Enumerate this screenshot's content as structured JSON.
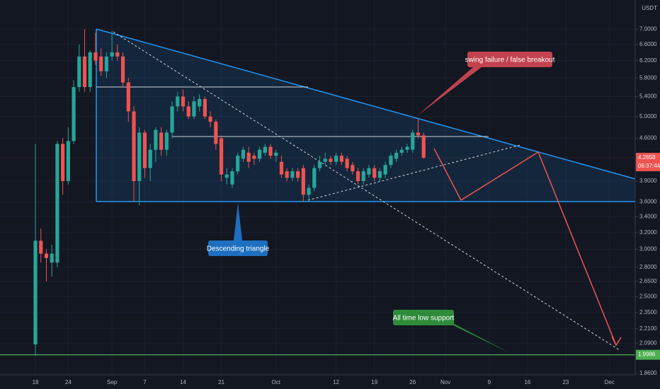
{
  "chart_data": {
    "type": "candlestick",
    "log_scale": true,
    "grid": true,
    "up_color": "#26a69a",
    "down_color": "#ef5350",
    "currency": "USDT",
    "x": [
      0,
      1,
      2,
      3,
      4,
      5,
      6,
      7,
      8,
      9,
      10,
      11,
      12,
      13,
      14,
      15,
      16,
      17,
      18,
      19,
      20,
      21,
      22,
      23,
      24,
      25,
      26,
      27,
      28,
      29,
      30,
      31,
      32,
      33,
      34,
      35,
      36,
      37,
      38,
      39,
      40,
      41,
      42,
      43,
      44,
      45,
      46,
      47,
      48,
      49,
      50,
      51,
      52,
      53,
      54,
      55,
      56,
      57,
      58,
      59,
      60,
      61,
      62,
      63,
      64,
      65,
      66,
      67,
      68,
      69,
      70,
      71
    ],
    "open": [
      2.08,
      3.1,
      2.95,
      2.85,
      2.85,
      4.5,
      3.9,
      4.55,
      5.6,
      6.3,
      5.6,
      6.4,
      6.3,
      5.95,
      6.3,
      6.4,
      6.3,
      5.7,
      5.1,
      3.9,
      4.7,
      4.1,
      4.4,
      4.7,
      4.4,
      4.7,
      5.2,
      5.4,
      5.2,
      5.0,
      5.2,
      5.35,
      5.0,
      4.9,
      4.6,
      3.95,
      3.85,
      4.05,
      4.25,
      4.35,
      4.3,
      4.25,
      4.35,
      4.45,
      4.3,
      4.2,
      4.05,
      3.95,
      4.05,
      4.1,
      3.7,
      3.8,
      4.1,
      4.2,
      4.25,
      4.2,
      4.3,
      4.25,
      4.15,
      4.05,
      3.9,
      4.0,
      4.1,
      3.95,
      4.0,
      4.15,
      4.25,
      4.35,
      4.4,
      4.4,
      4.7,
      4.65
    ],
    "high": [
      4.5,
      3.25,
      3.0,
      3.05,
      4.55,
      4.6,
      4.8,
      5.75,
      6.6,
      7.0,
      6.45,
      6.9,
      6.5,
      6.4,
      6.95,
      6.6,
      6.4,
      5.8,
      5.2,
      4.8,
      4.75,
      4.5,
      4.8,
      4.8,
      4.75,
      5.3,
      5.5,
      5.55,
      5.3,
      5.4,
      5.45,
      5.4,
      5.1,
      4.95,
      4.65,
      4.1,
      4.1,
      4.35,
      4.45,
      4.45,
      4.35,
      4.45,
      4.5,
      4.5,
      4.4,
      4.3,
      4.1,
      4.1,
      4.1,
      4.15,
      3.85,
      4.15,
      4.3,
      4.35,
      4.3,
      4.35,
      4.35,
      4.3,
      4.2,
      4.1,
      4.1,
      4.15,
      4.15,
      4.1,
      4.2,
      4.35,
      4.4,
      4.45,
      4.5,
      4.75,
      4.95,
      4.7
    ],
    "low": [
      1.99,
      2.85,
      2.65,
      2.7,
      2.8,
      3.7,
      3.85,
      4.5,
      5.5,
      5.5,
      5.5,
      6.1,
      5.85,
      5.8,
      6.2,
      6.2,
      5.6,
      4.9,
      3.6,
      3.55,
      3.95,
      3.9,
      4.2,
      4.3,
      4.3,
      4.6,
      5.1,
      5.1,
      4.95,
      4.95,
      5.1,
      4.95,
      4.8,
      4.4,
      3.9,
      3.85,
      3.8,
      4.0,
      4.2,
      4.1,
      4.15,
      4.2,
      4.3,
      4.25,
      4.2,
      3.95,
      3.9,
      3.9,
      3.9,
      3.6,
      3.6,
      3.75,
      4.05,
      4.15,
      4.15,
      4.15,
      4.15,
      4.05,
      4.0,
      3.85,
      3.85,
      3.95,
      3.9,
      3.9,
      3.95,
      4.1,
      4.2,
      4.3,
      4.35,
      4.35,
      4.6,
      4.25
    ],
    "close": [
      3.1,
      2.95,
      2.9,
      2.95,
      4.5,
      3.9,
      4.55,
      5.6,
      6.3,
      5.6,
      6.4,
      6.2,
      5.95,
      6.3,
      6.4,
      6.3,
      5.7,
      5.1,
      3.9,
      4.7,
      4.1,
      4.4,
      4.75,
      4.4,
      4.7,
      5.2,
      5.4,
      5.2,
      5.0,
      5.3,
      5.35,
      5.0,
      4.9,
      4.5,
      4.0,
      4.0,
      4.05,
      4.3,
      4.4,
      4.2,
      4.25,
      4.4,
      4.45,
      4.3,
      4.35,
      4.0,
      3.95,
      4.05,
      3.95,
      3.7,
      3.8,
      4.1,
      4.2,
      4.25,
      4.2,
      4.3,
      4.2,
      4.1,
      4.05,
      3.9,
      4.05,
      4.1,
      3.95,
      4.05,
      4.15,
      4.3,
      4.35,
      4.4,
      4.45,
      4.7,
      4.65,
      4.2658
    ],
    "xlim": [
      -6.48,
      109.7
    ],
    "xticks": [
      {
        "value": 0,
        "label": "18"
      },
      {
        "value": 6,
        "label": "24"
      },
      {
        "value": 14,
        "label": "Sep"
      },
      {
        "value": 20,
        "label": "7"
      },
      {
        "value": 27,
        "label": "14"
      },
      {
        "value": 34,
        "label": "21"
      },
      {
        "value": 44,
        "label": "Oct"
      },
      {
        "value": 55,
        "label": "12"
      },
      {
        "value": 62,
        "label": "19"
      },
      {
        "value": 69,
        "label": "26"
      },
      {
        "value": 75,
        "label": "Nov"
      },
      {
        "value": 83,
        "label": "9"
      },
      {
        "value": 90,
        "label": "16"
      },
      {
        "value": 97,
        "label": "23"
      },
      {
        "value": 105,
        "label": "Dec"
      }
    ],
    "ylim": [
      1.85,
      7.83
    ],
    "yticks": [
      {
        "value": 7,
        "label": "7.0000"
      },
      {
        "value": 6.6,
        "label": "6.6000"
      },
      {
        "value": 6.2,
        "label": "6.2000"
      },
      {
        "value": 5.8,
        "label": "5.8000"
      },
      {
        "value": 5.4,
        "label": "5.4000"
      },
      {
        "value": 5,
        "label": "5.0000"
      },
      {
        "value": 4.6,
        "label": "4.6000"
      },
      {
        "value": 3.9,
        "label": "3.9000"
      },
      {
        "value": 3.6,
        "label": "3.6000"
      },
      {
        "value": 3.4,
        "label": "3.4000"
      },
      {
        "value": 3.2,
        "label": "3.2000"
      },
      {
        "value": 3,
        "label": "3.0000"
      },
      {
        "value": 2.8,
        "label": "2.8000"
      },
      {
        "value": 2.65,
        "label": "2.6500"
      },
      {
        "value": 2.5,
        "label": "2.5000"
      },
      {
        "value": 2.35,
        "label": "2.3500"
      },
      {
        "value": 2.21,
        "label": "2.2100"
      },
      {
        "value": 2.09,
        "label": "2.0900"
      },
      {
        "value": 1.86,
        "label": "1.8600"
      }
    ],
    "last_price": 4.2658,
    "countdown": "06:37:44",
    "support_level": 1.9986,
    "annotations": [
      "swing failure / false breakout",
      "Descending triangle",
      "All time low support"
    ]
  }
}
